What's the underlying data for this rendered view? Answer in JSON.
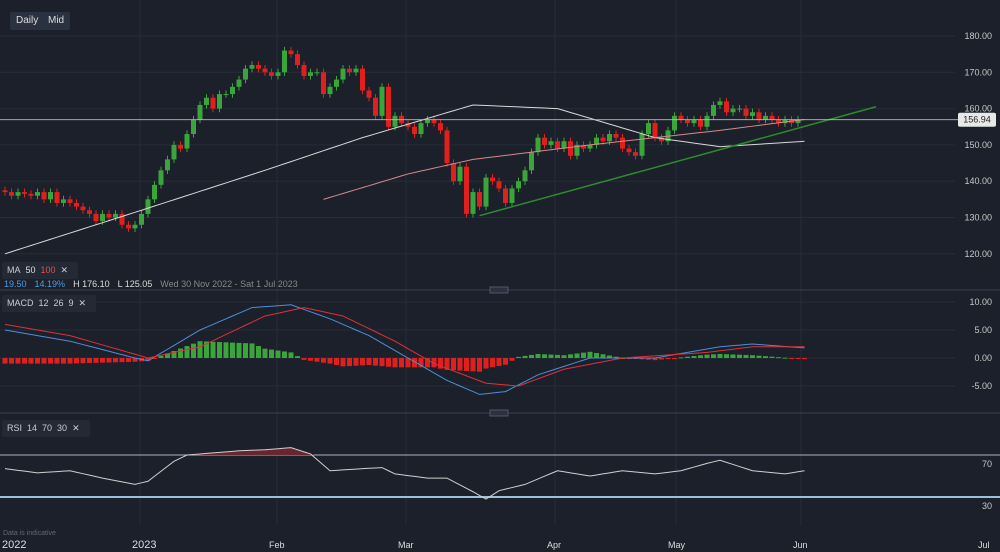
{
  "toolbar": {
    "interval": "Daily",
    "price_type": "Mid"
  },
  "ma_legend": {
    "label": "MA",
    "p1": "50",
    "p2": "100",
    "close": "✕"
  },
  "stats": {
    "change": "19.50",
    "change_pct": "14.19%",
    "high": "H 176.10",
    "low": "L 125.05",
    "range": "Wed 30 Nov 2022 - Sat 1 Jul 2023"
  },
  "macd_legend": {
    "label": "MACD",
    "fast": "12",
    "slow": "26",
    "signal": "9",
    "close": "✕"
  },
  "rsi_legend": {
    "label": "RSI",
    "period": "14",
    "upper": "70",
    "lower": "30",
    "close": "✕"
  },
  "footnote": "Data is indicative",
  "colors": {
    "up": "#3aa53a",
    "down": "#e0201e",
    "ma50": "#d8d8d8",
    "ma100": "#d68a8a",
    "trend": "#2e8b2e",
    "macd": "#4a90d9",
    "signal": "#e0303a"
  },
  "chart_data": [
    {
      "type": "candlestick",
      "ylim": [
        113,
        185
      ],
      "yticks": [
        "180.00",
        "170.00",
        "160.00",
        "150.00",
        "140.00",
        "130.00",
        "120.00"
      ],
      "last_price": "156.94",
      "xticks": [
        "2022",
        "2023",
        "Feb",
        "Mar",
        "Apr",
        "May",
        "Jun",
        "Jul"
      ],
      "closes": [
        137,
        136,
        137,
        136.5,
        136,
        137,
        135,
        137,
        134,
        135,
        134,
        133,
        132,
        131,
        129,
        131,
        130,
        131,
        128,
        127,
        128,
        131,
        135,
        139,
        143,
        146,
        150,
        149,
        153,
        157,
        161,
        163,
        160,
        164,
        164,
        166,
        168,
        171,
        172,
        171,
        170,
        169,
        170,
        176,
        175,
        172,
        169,
        170,
        170,
        164,
        166,
        168,
        171,
        170,
        171,
        165,
        163,
        158,
        166,
        155,
        158,
        156,
        155,
        153,
        156,
        157,
        156,
        154,
        145,
        140,
        144,
        131,
        137,
        133,
        141,
        140,
        138,
        134,
        138,
        140,
        143,
        148,
        152,
        150,
        151,
        149,
        151,
        147,
        150,
        149,
        150,
        152,
        151,
        153,
        152,
        149,
        148,
        147,
        153,
        156,
        152,
        151,
        154,
        158,
        157,
        156,
        157,
        155,
        158,
        161,
        162,
        159,
        160,
        160,
        158,
        159,
        157,
        158,
        157,
        156,
        157,
        156,
        157
      ],
      "ma50": [
        [
          0,
          120
        ],
        [
          21,
          132
        ],
        [
          40,
          143
        ],
        [
          55,
          152
        ],
        [
          72,
          161
        ],
        [
          85,
          160
        ],
        [
          100,
          152
        ],
        [
          110,
          149.5
        ],
        [
          123,
          151
        ]
      ],
      "ma100": [
        [
          49,
          135
        ],
        [
          62,
          142
        ],
        [
          72,
          146
        ],
        [
          90,
          150
        ],
        [
          110,
          154
        ],
        [
          123,
          157
        ]
      ],
      "trendline": [
        [
          73,
          130.5
        ],
        [
          134,
          160.5
        ]
      ]
    },
    {
      "type": "line",
      "name": "MACD",
      "ylim": [
        -10,
        12
      ],
      "yticks": [
        "10.00",
        "5.00",
        "0.00",
        "-5.00"
      ],
      "macd": [
        [
          0,
          5
        ],
        [
          10,
          3
        ],
        [
          20,
          0
        ],
        [
          22,
          -0.5
        ],
        [
          30,
          5
        ],
        [
          38,
          9
        ],
        [
          44,
          9.5
        ],
        [
          50,
          7
        ],
        [
          56,
          4
        ],
        [
          62,
          0
        ],
        [
          68,
          -4
        ],
        [
          73,
          -6.5
        ],
        [
          77,
          -6
        ],
        [
          82,
          -3
        ],
        [
          90,
          0
        ],
        [
          100,
          0
        ],
        [
          110,
          2
        ],
        [
          115,
          2.5
        ],
        [
          123,
          1.8
        ]
      ],
      "signal": [
        [
          0,
          6
        ],
        [
          10,
          4
        ],
        [
          22,
          0
        ],
        [
          30,
          2
        ],
        [
          40,
          7.5
        ],
        [
          46,
          9
        ],
        [
          52,
          7.5
        ],
        [
          60,
          3
        ],
        [
          66,
          -1
        ],
        [
          74,
          -4.5
        ],
        [
          79,
          -5
        ],
        [
          86,
          -2
        ],
        [
          95,
          0
        ],
        [
          108,
          1
        ],
        [
          115,
          2
        ],
        [
          123,
          2
        ]
      ]
    },
    {
      "type": "line",
      "name": "RSI",
      "yticks": [
        "70",
        "30"
      ],
      "rsi": [
        [
          0,
          57
        ],
        [
          5,
          53
        ],
        [
          10,
          55
        ],
        [
          15,
          48
        ],
        [
          20,
          42
        ],
        [
          22,
          45
        ],
        [
          26,
          64
        ],
        [
          28,
          70
        ],
        [
          32,
          72
        ],
        [
          36,
          74
        ],
        [
          40,
          75
        ],
        [
          44,
          77
        ],
        [
          47,
          71
        ],
        [
          50,
          55
        ],
        [
          55,
          57
        ],
        [
          58,
          58
        ],
        [
          60,
          52
        ],
        [
          65,
          48
        ],
        [
          68,
          48
        ],
        [
          72,
          35
        ],
        [
          74,
          28
        ],
        [
          76,
          36
        ],
        [
          80,
          42
        ],
        [
          85,
          55
        ],
        [
          90,
          50
        ],
        [
          95,
          55
        ],
        [
          100,
          52
        ],
        [
          104,
          55
        ],
        [
          108,
          62
        ],
        [
          110,
          65
        ],
        [
          115,
          55
        ],
        [
          120,
          52
        ],
        [
          123,
          55
        ]
      ]
    }
  ]
}
